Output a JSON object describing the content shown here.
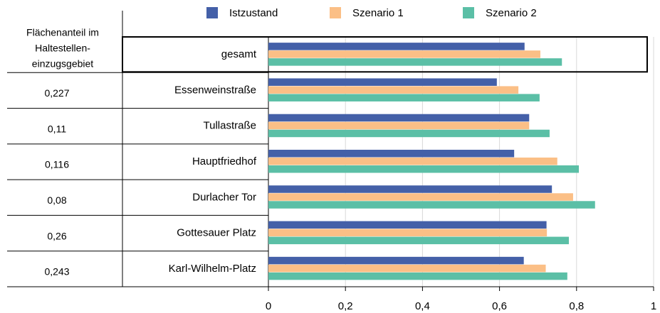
{
  "chart_data": {
    "type": "bar",
    "orientation": "horizontal",
    "categories": [
      "gesamt",
      "Essenweinstraße",
      "Tullastraße",
      "Hauptfriedhof",
      "Durlacher Tor",
      "Gottesauer Platz",
      "Karl-Wilhelm-Platz"
    ],
    "series": [
      {
        "name": "Istzustand",
        "color": "#4460a8",
        "values": [
          0.665,
          0.593,
          0.677,
          0.638,
          0.736,
          0.722,
          0.663
        ]
      },
      {
        "name": "Szenario 1",
        "color": "#fbbf86",
        "values": [
          0.706,
          0.649,
          0.677,
          0.75,
          0.791,
          0.723,
          0.72
        ]
      },
      {
        "name": "Szenario 2",
        "color": "#5bbfa6",
        "values": [
          0.762,
          0.704,
          0.73,
          0.806,
          0.848,
          0.78,
          0.776
        ]
      }
    ],
    "xlim": [
      0,
      1
    ],
    "xticks": [
      0,
      {
        "value": 0.2,
        "label": "0,2"
      },
      {
        "value": 0.4,
        "label": "0,4"
      },
      {
        "value": 0.6,
        "label": "0,6"
      },
      {
        "value": 0.8,
        "label": "0,8"
      },
      1
    ],
    "grid": true
  },
  "table": {
    "header": [
      "Flächenanteil im",
      "Haltestellen-",
      "einzugsgebiet"
    ],
    "shares": [
      "0,227",
      "0,11",
      "0,116",
      "0,08",
      "0,26",
      "0,243"
    ]
  }
}
